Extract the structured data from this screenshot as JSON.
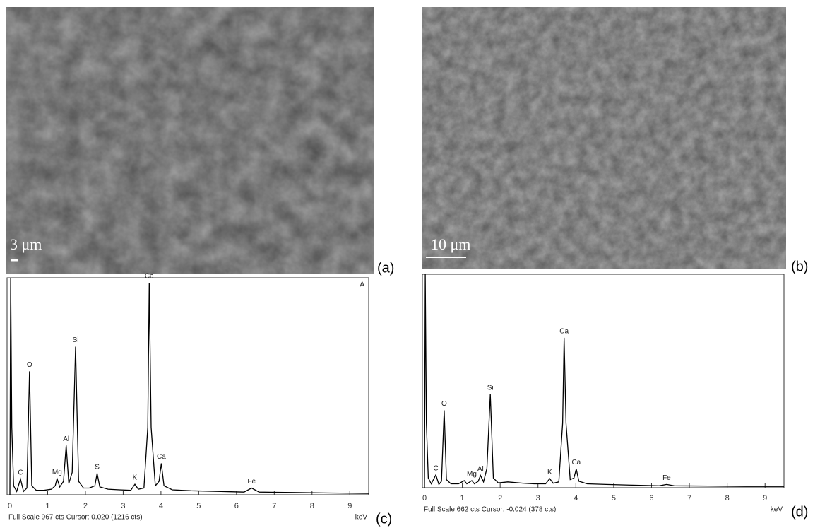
{
  "panels": [
    {
      "label": "(a)",
      "scale_bar": "3 μm"
    },
    {
      "label": "(b)",
      "scale_bar": "10 μm"
    }
  ],
  "chart_data": [
    {
      "type": "line",
      "panel_label": "(c)",
      "corner_label": "A",
      "footer": "Full Scale 967 cts Cursor: 0.020  (1216 cts)",
      "x_unit": "keV",
      "color": "#000000",
      "x": [
        0,
        0.02,
        0.05,
        0.1,
        0.18,
        0.28,
        0.36,
        0.45,
        0.52,
        0.58,
        0.7,
        0.9,
        1.1,
        1.2,
        1.25,
        1.32,
        1.42,
        1.49,
        1.56,
        1.65,
        1.74,
        1.82,
        1.95,
        2.1,
        2.25,
        2.31,
        2.38,
        2.6,
        2.9,
        3.2,
        3.31,
        3.4,
        3.55,
        3.65,
        3.69,
        3.74,
        3.85,
        3.95,
        4.01,
        4.08,
        4.3,
        4.8,
        5.5,
        6.2,
        6.4,
        6.6,
        7.5,
        8.5,
        9.5
      ],
      "values": [
        0,
        967,
        300,
        40,
        15,
        70,
        15,
        30,
        550,
        40,
        20,
        20,
        25,
        40,
        72,
        35,
        60,
        220,
        50,
        100,
        660,
        60,
        30,
        30,
        40,
        95,
        35,
        25,
        22,
        20,
        47,
        25,
        30,
        300,
        945,
        300,
        40,
        60,
        140,
        40,
        22,
        18,
        15,
        12,
        30,
        12,
        10,
        8,
        6
      ],
      "xlim": [
        0,
        9.5
      ],
      "xticks": [
        0,
        1,
        2,
        3,
        4,
        5,
        6,
        7,
        8,
        9
      ],
      "ylim": [
        0,
        967
      ],
      "annotations": [
        {
          "text": "C",
          "x": 0.28
        },
        {
          "text": "O",
          "x": 0.52
        },
        {
          "text": "Mg",
          "x": 1.25
        },
        {
          "text": "Al",
          "x": 1.49
        },
        {
          "text": "Si",
          "x": 1.74
        },
        {
          "text": "S",
          "x": 2.31
        },
        {
          "text": "K",
          "x": 3.31
        },
        {
          "text": "Ca",
          "x": 3.69
        },
        {
          "text": "Ca",
          "x": 4.01
        },
        {
          "text": "Fe",
          "x": 6.4
        }
      ]
    },
    {
      "type": "line",
      "panel_label": "(d)",
      "footer": "Full Scale 662 cts Cursor: -0.024  (378 cts)",
      "x_unit": "keV",
      "color": "#000000",
      "x": [
        0,
        0.02,
        0.05,
        0.1,
        0.18,
        0.3,
        0.38,
        0.45,
        0.52,
        0.58,
        0.7,
        0.9,
        1.05,
        1.12,
        1.25,
        1.32,
        1.42,
        1.48,
        1.56,
        1.65,
        1.74,
        1.82,
        1.95,
        2.2,
        2.6,
        2.9,
        3.2,
        3.31,
        3.4,
        3.55,
        3.65,
        3.69,
        3.74,
        3.85,
        3.95,
        4.01,
        4.08,
        4.3,
        4.8,
        5.5,
        6.2,
        6.4,
        6.6,
        7.5,
        8.5,
        9.5
      ],
      "values": [
        0,
        662,
        200,
        30,
        12,
        40,
        10,
        20,
        240,
        25,
        12,
        12,
        22,
        12,
        22,
        12,
        20,
        38,
        18,
        60,
        290,
        30,
        15,
        18,
        14,
        12,
        12,
        28,
        14,
        18,
        200,
        465,
        200,
        25,
        30,
        58,
        20,
        12,
        10,
        8,
        6,
        10,
        6,
        5,
        4,
        4
      ],
      "xlim": [
        0,
        9.5
      ],
      "xticks": [
        0,
        1,
        2,
        3,
        4,
        5,
        6,
        7,
        8,
        9
      ],
      "ylim": [
        0,
        662
      ],
      "annotations": [
        {
          "text": "C",
          "x": 0.3
        },
        {
          "text": "O",
          "x": 0.52
        },
        {
          "text": "Mg",
          "x": 1.25
        },
        {
          "text": "Al",
          "x": 1.48
        },
        {
          "text": "Si",
          "x": 1.74
        },
        {
          "text": "K",
          "x": 3.31
        },
        {
          "text": "Ca",
          "x": 3.69
        },
        {
          "text": "Ca",
          "x": 4.01
        },
        {
          "text": "Fe",
          "x": 6.4
        }
      ]
    }
  ]
}
